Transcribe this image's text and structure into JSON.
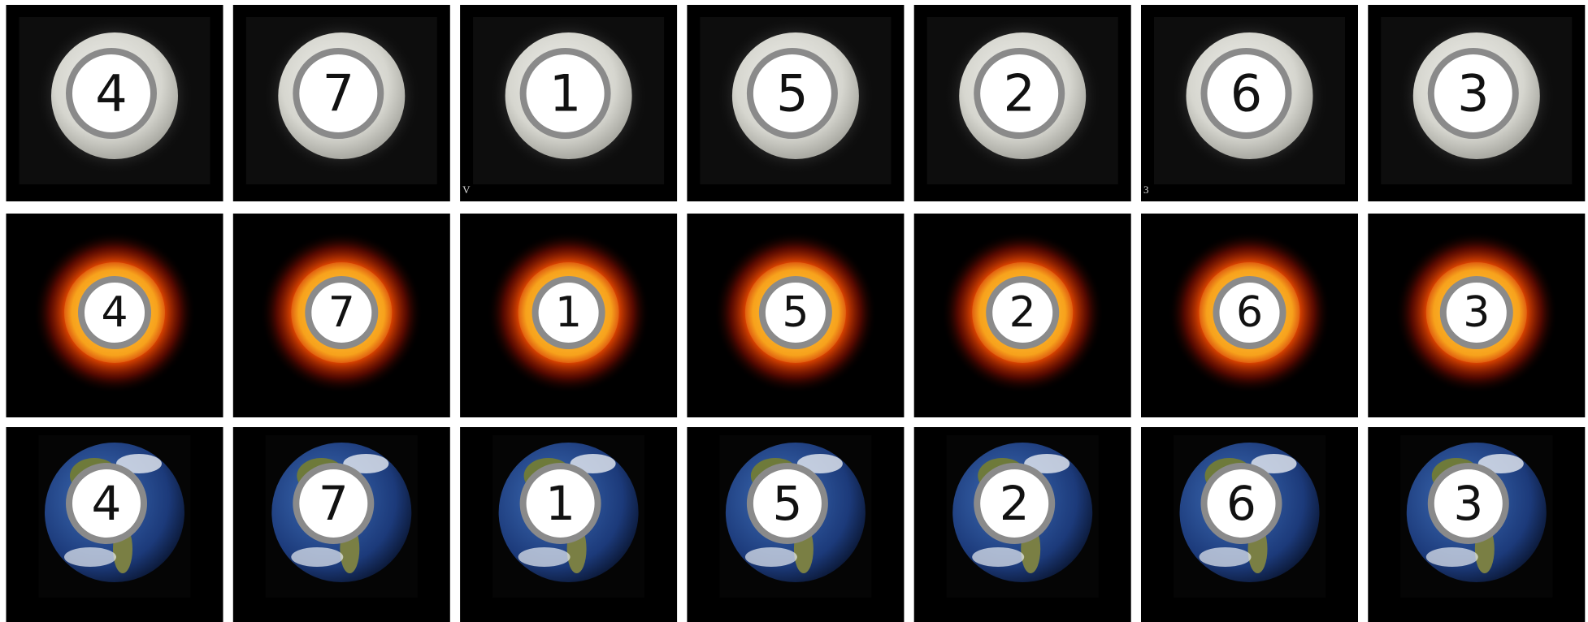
{
  "rows": [
    {
      "tiles": [
        {
          "number": "4"
        },
        {
          "number": "7"
        },
        {
          "number": "1",
          "caption": "V"
        },
        {
          "number": "5"
        },
        {
          "number": "2"
        },
        {
          "number": "6",
          "caption": "3"
        },
        {
          "number": "3"
        }
      ]
    },
    {
      "tiles": [
        {
          "number": "4"
        },
        {
          "number": "7"
        },
        {
          "number": "1"
        },
        {
          "number": "5"
        },
        {
          "number": "2"
        },
        {
          "number": "6"
        },
        {
          "number": "3"
        }
      ]
    },
    {
      "tiles": [
        {
          "number": "4"
        },
        {
          "number": "7"
        },
        {
          "number": "1"
        },
        {
          "number": "5"
        },
        {
          "number": "2"
        },
        {
          "number": "6"
        },
        {
          "number": "3"
        }
      ]
    }
  ]
}
